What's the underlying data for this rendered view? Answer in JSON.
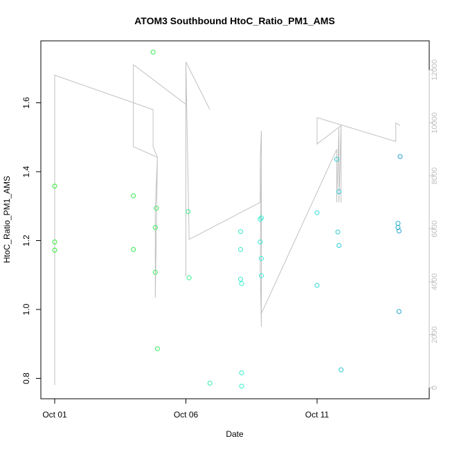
{
  "chart_data": {
    "type": "scatter",
    "title": "ATOM3 Southbound HtoC_Ratio_PM1_AMS",
    "xlabel": "Date",
    "ylabel": "HtoC_Ratio_PM1_AMS",
    "x_tick_labels": [
      "Oct 01",
      "Oct 06",
      "Oct 11"
    ],
    "x_tick_values": [
      "2016-10-01",
      "2016-10-06",
      "2016-10-11"
    ],
    "xlim": [
      "2016-10-01",
      "2016-10-14"
    ],
    "ylim": [
      0.77,
      1.76
    ],
    "y_ticks": [
      0.8,
      1.0,
      1.2,
      1.4,
      1.6
    ],
    "y_tick_labels": [
      "0.8",
      "1.0",
      "1.2",
      "1.4",
      "1.6"
    ],
    "y2_ticks": [
      0,
      2000,
      4000,
      6000,
      8000,
      10000,
      12000
    ],
    "y2_tick_labels": [
      "0",
      "2000",
      "4000",
      "6000",
      "8000",
      "10000",
      "12000"
    ],
    "y2lim": [
      -300,
      13200
    ],
    "colors": {
      "altitude_line": "#c0c0c0",
      "point_start": "#33ee33",
      "point_mid": "#33eedd",
      "point_end": "#2299cc"
    },
    "series": [
      {
        "kind": "points",
        "points": [
          [
            "2016-10-01T00:00",
            1.358,
            0.0
          ],
          [
            "2016-10-01T00:00",
            1.196,
            0.0
          ],
          [
            "2016-10-01T00:00",
            1.172,
            0.0
          ],
          [
            "2016-10-04T00:00",
            1.33,
            0.08
          ],
          [
            "2016-10-04T00:00",
            1.174,
            0.08
          ],
          [
            "2016-10-04T18:00",
            1.747,
            0.11
          ],
          [
            "2016-10-04T20:00",
            1.238,
            0.12
          ],
          [
            "2016-10-04T21:00",
            1.294,
            0.13
          ],
          [
            "2016-10-04T20:00",
            1.108,
            0.12
          ],
          [
            "2016-10-04T22:00",
            0.886,
            0.14
          ],
          [
            "2016-10-06T02:00",
            1.284,
            0.3
          ],
          [
            "2016-10-06T03:00",
            1.092,
            0.3
          ],
          [
            "2016-10-06T22:00",
            0.786,
            0.4
          ],
          [
            "2016-10-08T02:00",
            1.226,
            0.52
          ],
          [
            "2016-10-08T02:00",
            1.174,
            0.52
          ],
          [
            "2016-10-08T02:00",
            1.088,
            0.52
          ],
          [
            "2016-10-08T03:00",
            1.075,
            0.53
          ],
          [
            "2016-10-08T03:00",
            0.816,
            0.53
          ],
          [
            "2016-10-08T03:00",
            0.777,
            0.53
          ],
          [
            "2016-10-08T20:00",
            1.262,
            0.56
          ],
          [
            "2016-10-08T21:00",
            1.266,
            0.57
          ],
          [
            "2016-10-08T20:00",
            1.196,
            0.56
          ],
          [
            "2016-10-08T21:00",
            1.148,
            0.57
          ],
          [
            "2016-10-08T21:00",
            1.098,
            0.57
          ],
          [
            "2016-10-11T00:00",
            1.281,
            0.7
          ],
          [
            "2016-10-11T00:00",
            1.07,
            0.7
          ],
          [
            "2016-10-11T18:00",
            1.436,
            0.75
          ],
          [
            "2016-10-11T19:00",
            1.225,
            0.75
          ],
          [
            "2016-10-11T20:00",
            1.342,
            0.76
          ],
          [
            "2016-10-11T20:00",
            1.186,
            0.76
          ],
          [
            "2016-10-11T22:00",
            0.825,
            0.77
          ],
          [
            "2016-10-14T02:00",
            1.25,
            0.92
          ],
          [
            "2016-10-14T02:00",
            1.238,
            0.92
          ],
          [
            "2016-10-14T03:00",
            1.228,
            0.93
          ],
          [
            "2016-10-14T03:00",
            0.994,
            0.93
          ],
          [
            "2016-10-14T04:00",
            1.444,
            0.96
          ]
        ]
      },
      {
        "kind": "line",
        "axis": "right",
        "points": [
          [
            "2016-10-01T00:00",
            100
          ],
          [
            "2016-10-01T00:00",
            11800
          ],
          [
            "2016-10-04T18:00",
            10500
          ],
          [
            "2016-10-04T18:00",
            9100
          ],
          [
            "2016-10-04T22:00",
            8700
          ],
          [
            "2016-10-04T20:00",
            3400
          ],
          [
            "2016-10-04T20:00",
            6800
          ],
          [
            "2016-10-04T22:00",
            8700
          ],
          [
            "2016-10-04T00:00",
            9100
          ],
          [
            "2016-10-04T00:00",
            12200
          ],
          [
            "2016-10-06T00:00",
            10700
          ],
          [
            "2016-10-06T00:00",
            4200
          ],
          [
            "2016-10-06T00:00",
            12300
          ],
          [
            "2016-10-06T22:00",
            10500
          ],
          [
            "2016-10-06T00:00",
            12300
          ],
          [
            "2016-10-06T03:00",
            5600
          ],
          [
            "2016-10-08T20:00",
            7000
          ],
          [
            "2016-10-08T20:00",
            8600
          ],
          [
            "2016-10-08T21:00",
            9700
          ],
          [
            "2016-10-08T21:00",
            2300
          ],
          [
            "2016-10-08T20:00",
            4600
          ],
          [
            "2016-10-08T21:00",
            8900
          ],
          [
            "2016-10-08T21:00",
            4600
          ],
          [
            "2016-10-08T21:00",
            2800
          ],
          [
            "2016-10-11T18:00",
            9000
          ],
          [
            "2016-10-11T18:00",
            8600
          ],
          [
            "2016-10-11T18:00",
            7000
          ],
          [
            "2016-10-11T20:00",
            9800
          ],
          [
            "2016-10-11T20:00",
            9300
          ],
          [
            "2016-10-11T20:00",
            7000
          ],
          [
            "2016-10-11T22:00",
            9900
          ],
          [
            "2016-10-11T22:00",
            7000
          ],
          [
            "2016-10-11T22:00",
            9900
          ],
          [
            "2016-10-11T00:00",
            9200
          ],
          [
            "2016-10-11T00:00",
            10200
          ],
          [
            "2016-10-14T00:00",
            9300
          ],
          [
            "2016-10-14T00:00",
            10000
          ],
          [
            "2016-10-14T04:00",
            9900
          ]
        ]
      }
    ]
  }
}
